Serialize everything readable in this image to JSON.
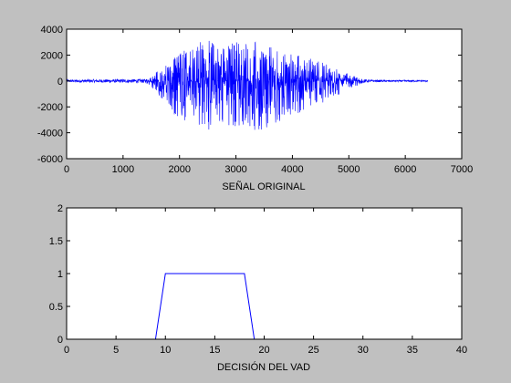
{
  "colors": {
    "figure_background": "#c0c0c0",
    "axes_background": "#ffffff",
    "series": "#0000ff",
    "axis_line": "#000000"
  },
  "chart_data": [
    {
      "type": "line",
      "title": "",
      "xlabel": "SEÑAL ORIGINAL",
      "ylabel": "",
      "xlim": [
        0,
        7000
      ],
      "ylim": [
        -6000,
        4000
      ],
      "xticks": [
        0,
        1000,
        2000,
        3000,
        4000,
        5000,
        6000,
        7000
      ],
      "yticks": [
        -6000,
        -4000,
        -2000,
        0,
        2000,
        4000
      ],
      "grid": false,
      "legend": "none",
      "signal_extent_samples": [
        0,
        6400
      ],
      "active_region_samples": [
        1450,
        5250
      ],
      "series": [
        {
          "envelope_x": [
            0,
            1400,
            1500,
            1700,
            1900,
            2100,
            2300,
            2500,
            2700,
            2900,
            3100,
            3300,
            3500,
            3700,
            3900,
            4100,
            4300,
            4500,
            4700,
            4900,
            5100,
            5250,
            5400,
            6400
          ],
          "envelope_max": [
            100,
            150,
            400,
            1100,
            2000,
            2600,
            3000,
            3300,
            2800,
            3000,
            3400,
            3200,
            2800,
            2500,
            2200,
            2100,
            1800,
            1500,
            1100,
            700,
            400,
            150,
            80,
            60
          ],
          "envelope_min": [
            -100,
            -150,
            -500,
            -1500,
            -2600,
            -3200,
            -3600,
            -3800,
            -3500,
            -3600,
            -3800,
            -3900,
            -3700,
            -3300,
            -3000,
            -2600,
            -2200,
            -1800,
            -1400,
            -900,
            -500,
            -150,
            -80,
            -60
          ]
        }
      ]
    },
    {
      "type": "line",
      "title": "",
      "xlabel": "DECISIÓN DEL VAD",
      "ylabel": "",
      "xlim": [
        0,
        40
      ],
      "ylim": [
        0,
        2
      ],
      "xticks": [
        0,
        5,
        10,
        15,
        20,
        25,
        30,
        35,
        40
      ],
      "yticks": [
        0,
        0.5,
        1,
        1.5,
        2
      ],
      "grid": false,
      "legend": "none",
      "series": [
        {
          "x": [
            0,
            9,
            10,
            18,
            19,
            40
          ],
          "y": [
            0,
            0,
            1,
            1,
            0,
            0
          ]
        }
      ]
    }
  ]
}
